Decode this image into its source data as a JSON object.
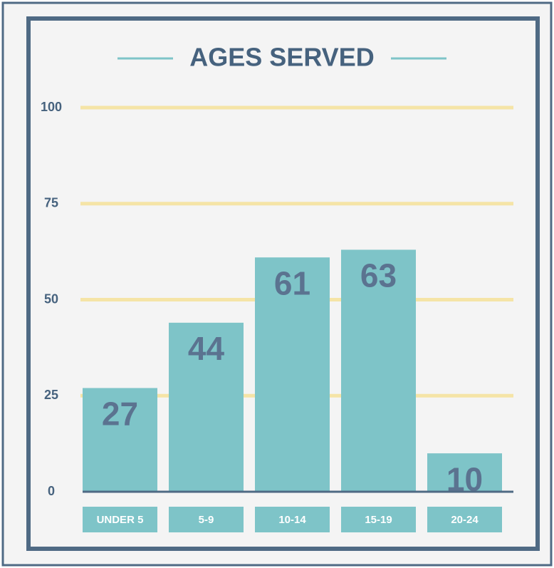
{
  "chart_data": {
    "type": "bar",
    "title": "AGES SERVED",
    "categories": [
      "UNDER 5",
      "5-9",
      "10-14",
      "15-19",
      "20-24"
    ],
    "values": [
      27,
      44,
      61,
      63,
      10
    ],
    "color": "#7ec4c8",
    "ylim": [
      0,
      100
    ],
    "yticks": [
      0,
      25,
      50,
      75,
      100
    ],
    "grid": true
  }
}
